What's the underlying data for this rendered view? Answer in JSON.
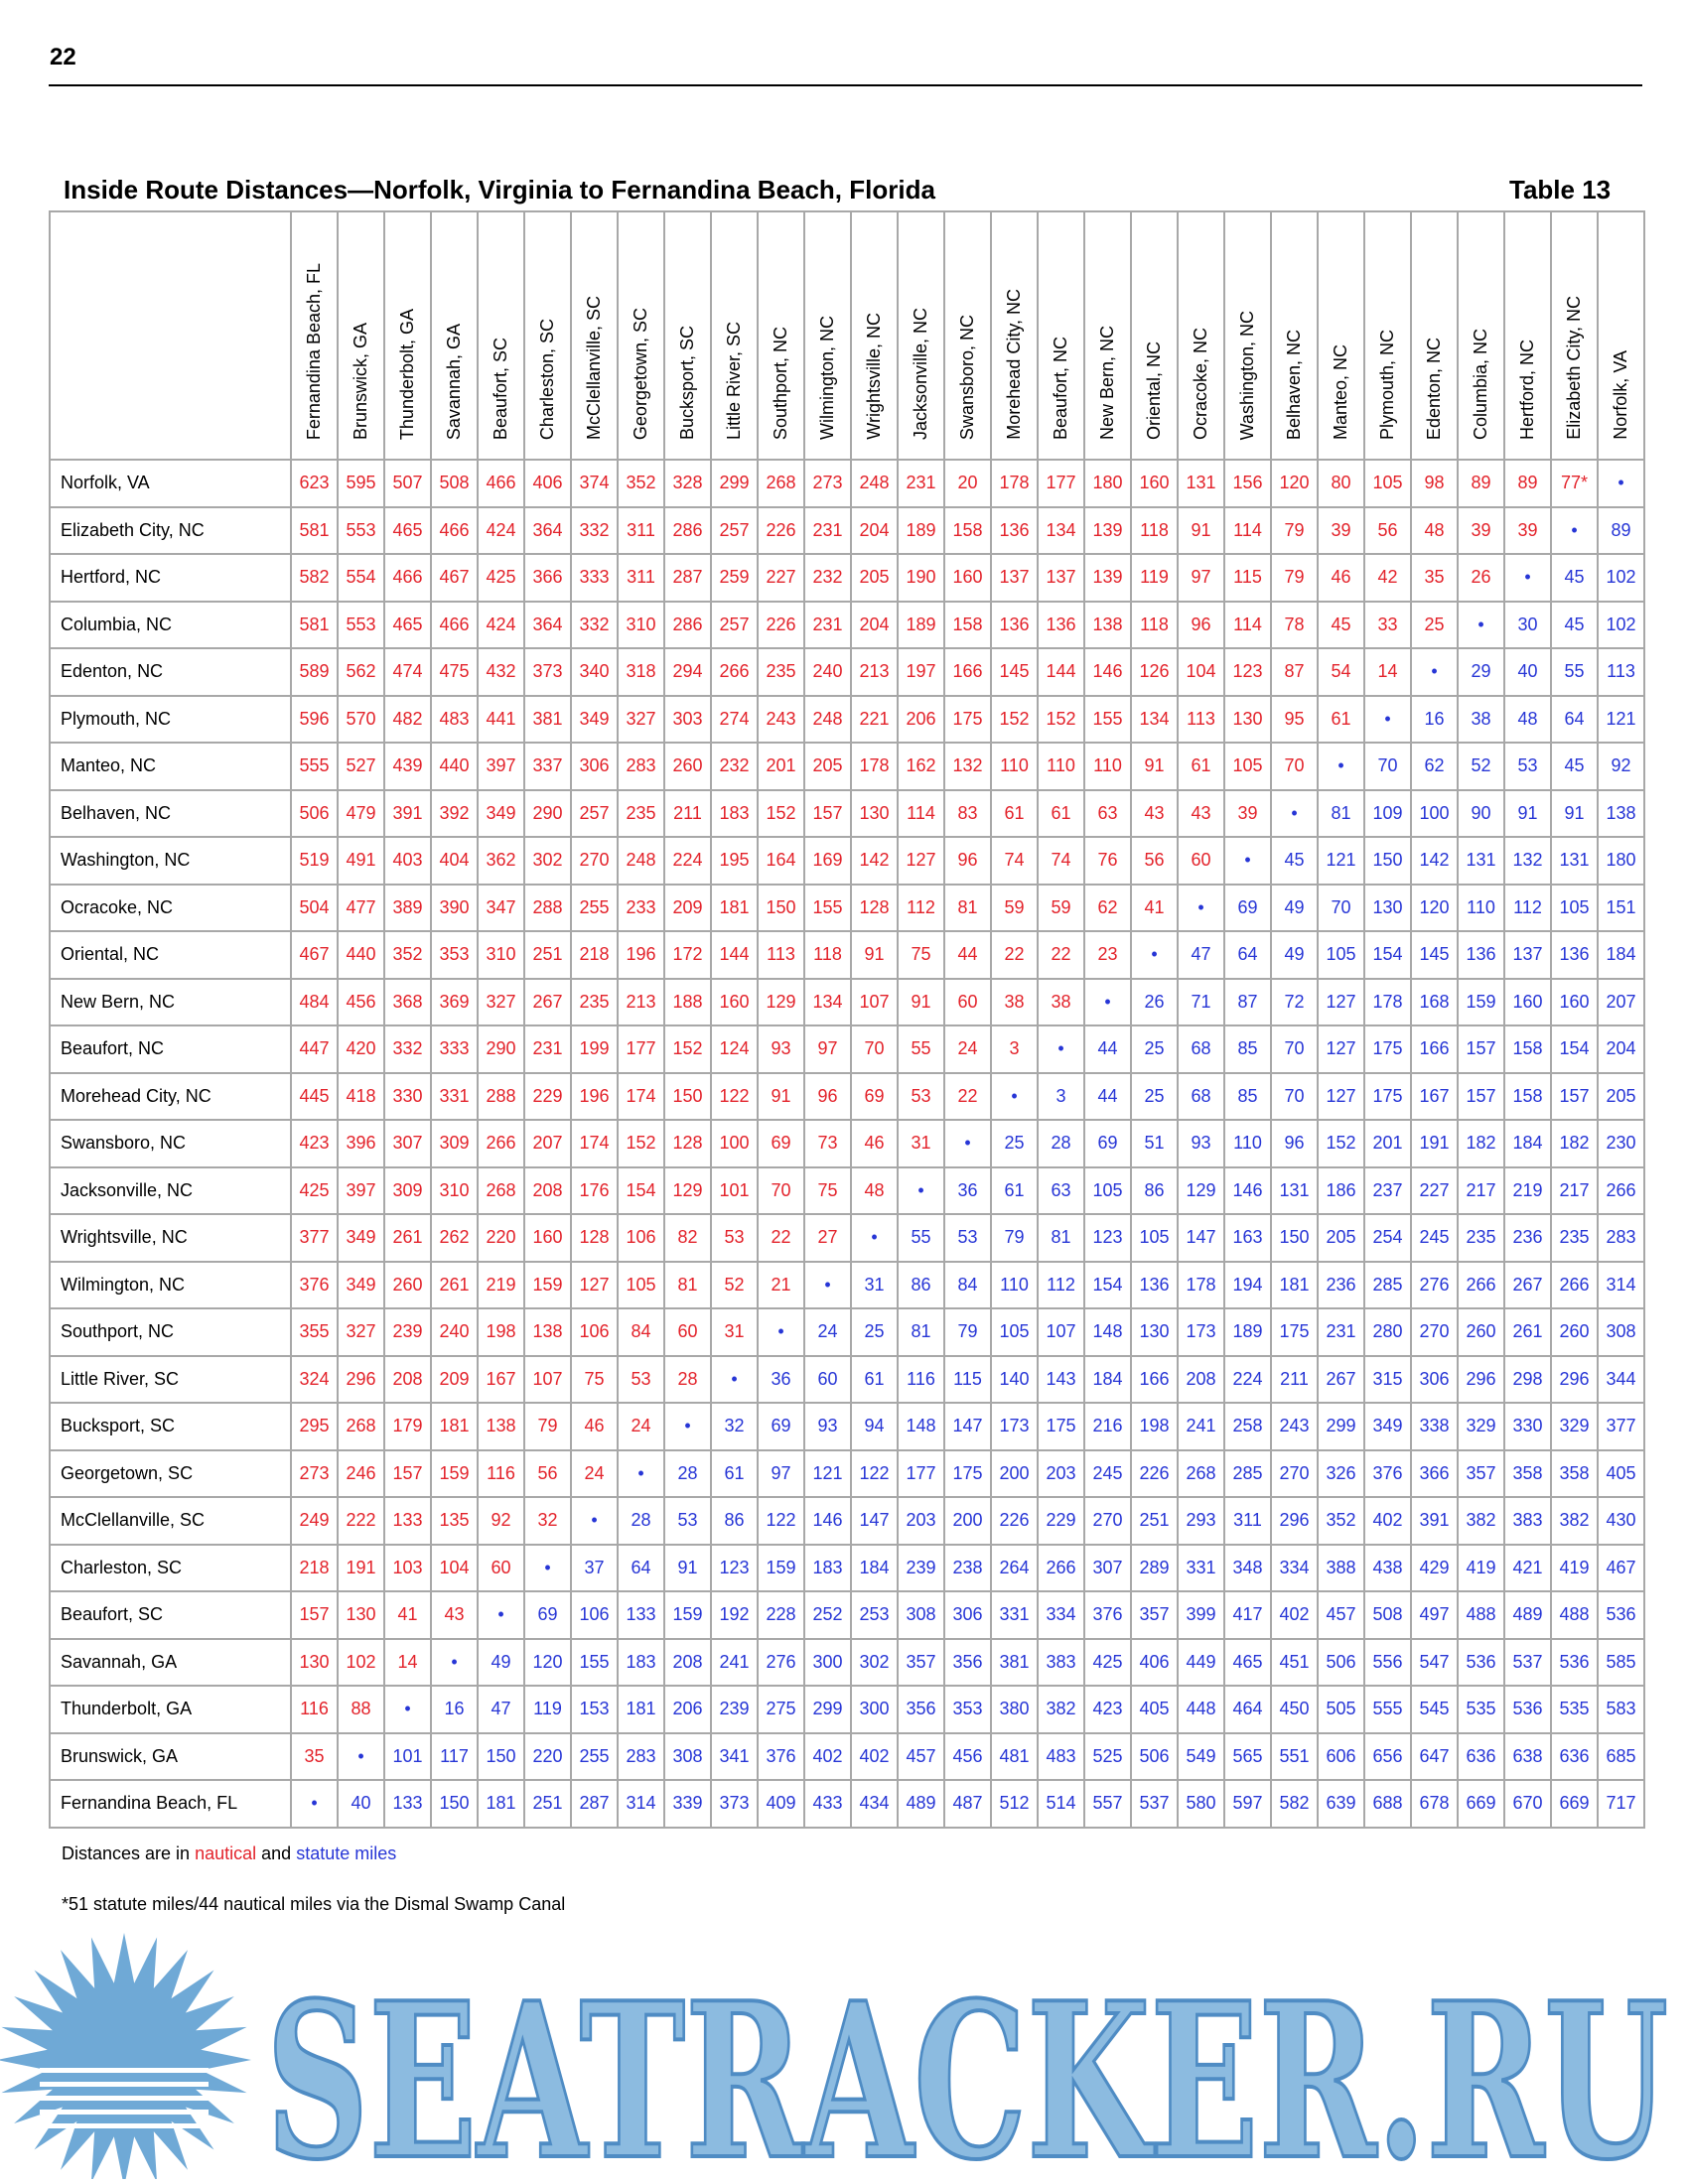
{
  "page_number": "22",
  "table": {
    "title": "Inside Route Distances—Norfolk, Virginia to Fernandina Beach, Florida",
    "label": "Table 13",
    "columns": [
      "Fernandina Beach, FL",
      "Brunswick, GA",
      "Thunderbolt, GA",
      "Savannah, GA",
      "Beaufort, SC",
      "Charleston, SC",
      "McClellanville, SC",
      "Georgetown, SC",
      "Bucksport, SC",
      "Little River, SC",
      "Southport, NC",
      "Wilmington, NC",
      "Wrightsville, NC",
      "Jacksonville, NC",
      "Swansboro, NC",
      "Morehead City, NC",
      "Beaufort, NC",
      "New Bern, NC",
      "Oriental, NC",
      "Ocracoke, NC",
      "Washington, NC",
      "Belhaven, NC",
      "Manteo, NC",
      "Plymouth, NC",
      "Edenton, NC",
      "Columbia, NC",
      "Hertford, NC",
      "Elizabeth City, NC",
      "Norfolk, VA"
    ],
    "rows": [
      {
        "name": "Norfolk, VA",
        "cells": [
          623,
          595,
          507,
          508,
          466,
          406,
          374,
          352,
          328,
          299,
          268,
          273,
          248,
          231,
          20,
          178,
          177,
          180,
          160,
          131,
          156,
          120,
          80,
          105,
          98,
          89,
          89,
          "77*",
          "•"
        ]
      },
      {
        "name": "Elizabeth City, NC",
        "cells": [
          581,
          553,
          465,
          466,
          424,
          364,
          332,
          311,
          286,
          257,
          226,
          231,
          204,
          189,
          158,
          136,
          134,
          139,
          118,
          91,
          114,
          79,
          39,
          56,
          48,
          39,
          39,
          "•",
          89
        ]
      },
      {
        "name": "Hertford, NC",
        "cells": [
          582,
          554,
          466,
          467,
          425,
          366,
          333,
          311,
          287,
          259,
          227,
          232,
          205,
          190,
          160,
          137,
          137,
          139,
          119,
          97,
          115,
          79,
          46,
          42,
          35,
          26,
          "•",
          45,
          102
        ]
      },
      {
        "name": "Columbia, NC",
        "cells": [
          581,
          553,
          465,
          466,
          424,
          364,
          332,
          310,
          286,
          257,
          226,
          231,
          204,
          189,
          158,
          136,
          136,
          138,
          118,
          96,
          114,
          78,
          45,
          33,
          25,
          "•",
          30,
          45,
          102
        ]
      },
      {
        "name": "Edenton, NC",
        "cells": [
          589,
          562,
          474,
          475,
          432,
          373,
          340,
          318,
          294,
          266,
          235,
          240,
          213,
          197,
          166,
          145,
          144,
          146,
          126,
          104,
          123,
          87,
          54,
          14,
          "•",
          29,
          40,
          55,
          113
        ]
      },
      {
        "name": "Plymouth, NC",
        "cells": [
          596,
          570,
          482,
          483,
          441,
          381,
          349,
          327,
          303,
          274,
          243,
          248,
          221,
          206,
          175,
          152,
          152,
          155,
          134,
          113,
          130,
          95,
          61,
          "•",
          16,
          38,
          48,
          64,
          121
        ]
      },
      {
        "name": "Manteo, NC",
        "cells": [
          555,
          527,
          439,
          440,
          397,
          337,
          306,
          283,
          260,
          232,
          201,
          205,
          178,
          162,
          132,
          110,
          110,
          110,
          91,
          61,
          105,
          70,
          "•",
          70,
          62,
          52,
          53,
          45,
          92
        ]
      },
      {
        "name": "Belhaven, NC",
        "cells": [
          506,
          479,
          391,
          392,
          349,
          290,
          257,
          235,
          211,
          183,
          152,
          157,
          130,
          114,
          83,
          61,
          61,
          63,
          43,
          43,
          39,
          "•",
          81,
          109,
          100,
          90,
          91,
          91,
          138
        ]
      },
      {
        "name": "Washington, NC",
        "cells": [
          519,
          491,
          403,
          404,
          362,
          302,
          270,
          248,
          224,
          195,
          164,
          169,
          142,
          127,
          96,
          74,
          74,
          76,
          56,
          60,
          "•",
          45,
          121,
          150,
          142,
          131,
          132,
          131,
          180
        ]
      },
      {
        "name": "Ocracoke, NC",
        "cells": [
          504,
          477,
          389,
          390,
          347,
          288,
          255,
          233,
          209,
          181,
          150,
          155,
          128,
          112,
          81,
          59,
          59,
          62,
          41,
          "•",
          69,
          49,
          70,
          130,
          120,
          110,
          112,
          105,
          151
        ]
      },
      {
        "name": "Oriental, NC",
        "cells": [
          467,
          440,
          352,
          353,
          310,
          251,
          218,
          196,
          172,
          144,
          113,
          118,
          91,
          75,
          44,
          22,
          22,
          23,
          "•",
          47,
          64,
          49,
          105,
          154,
          145,
          136,
          137,
          136,
          184
        ]
      },
      {
        "name": "New Bern, NC",
        "cells": [
          484,
          456,
          368,
          369,
          327,
          267,
          235,
          213,
          188,
          160,
          129,
          134,
          107,
          91,
          60,
          38,
          38,
          "•",
          26,
          71,
          87,
          72,
          127,
          178,
          168,
          159,
          160,
          160,
          207
        ]
      },
      {
        "name": "Beaufort, NC",
        "cells": [
          447,
          420,
          332,
          333,
          290,
          231,
          199,
          177,
          152,
          124,
          93,
          97,
          70,
          55,
          24,
          3,
          "•",
          44,
          25,
          68,
          85,
          70,
          127,
          175,
          166,
          157,
          158,
          154,
          204
        ]
      },
      {
        "name": "Morehead City, NC",
        "cells": [
          445,
          418,
          330,
          331,
          288,
          229,
          196,
          174,
          150,
          122,
          91,
          96,
          69,
          53,
          22,
          "•",
          3,
          44,
          25,
          68,
          85,
          70,
          127,
          175,
          167,
          157,
          158,
          157,
          205
        ]
      },
      {
        "name": "Swansboro, NC",
        "cells": [
          423,
          396,
          307,
          309,
          266,
          207,
          174,
          152,
          128,
          100,
          69,
          73,
          46,
          31,
          "•",
          25,
          28,
          69,
          51,
          93,
          110,
          96,
          152,
          201,
          191,
          182,
          184,
          182,
          230
        ]
      },
      {
        "name": "Jacksonville, NC",
        "cells": [
          425,
          397,
          309,
          310,
          268,
          208,
          176,
          154,
          129,
          101,
          70,
          75,
          48,
          "•",
          36,
          61,
          63,
          105,
          86,
          129,
          146,
          131,
          186,
          237,
          227,
          217,
          219,
          217,
          266
        ]
      },
      {
        "name": "Wrightsville, NC",
        "cells": [
          377,
          349,
          261,
          262,
          220,
          160,
          128,
          106,
          82,
          53,
          22,
          27,
          "•",
          55,
          53,
          79,
          81,
          123,
          105,
          147,
          163,
          150,
          205,
          254,
          245,
          235,
          236,
          235,
          283
        ]
      },
      {
        "name": "Wilmington, NC",
        "cells": [
          376,
          349,
          260,
          261,
          219,
          159,
          127,
          105,
          81,
          52,
          21,
          "•",
          31,
          86,
          84,
          110,
          112,
          154,
          136,
          178,
          194,
          181,
          236,
          285,
          276,
          266,
          267,
          266,
          314
        ]
      },
      {
        "name": "Southport, NC",
        "cells": [
          355,
          327,
          239,
          240,
          198,
          138,
          106,
          84,
          60,
          31,
          "•",
          24,
          25,
          81,
          79,
          105,
          107,
          148,
          130,
          173,
          189,
          175,
          231,
          280,
          270,
          260,
          261,
          260,
          308
        ]
      },
      {
        "name": "Little River, SC",
        "cells": [
          324,
          296,
          208,
          209,
          167,
          107,
          75,
          53,
          28,
          "•",
          36,
          60,
          61,
          116,
          115,
          140,
          143,
          184,
          166,
          208,
          224,
          211,
          267,
          315,
          306,
          296,
          298,
          296,
          344
        ]
      },
      {
        "name": "Bucksport, SC",
        "cells": [
          295,
          268,
          179,
          181,
          138,
          79,
          46,
          24,
          "•",
          32,
          69,
          93,
          94,
          148,
          147,
          173,
          175,
          216,
          198,
          241,
          258,
          243,
          299,
          349,
          338,
          329,
          330,
          329,
          377
        ]
      },
      {
        "name": "Georgetown, SC",
        "cells": [
          273,
          246,
          157,
          159,
          116,
          56,
          24,
          "•",
          28,
          61,
          97,
          121,
          122,
          177,
          175,
          200,
          203,
          245,
          226,
          268,
          285,
          270,
          326,
          376,
          366,
          357,
          358,
          358,
          405
        ]
      },
      {
        "name": "McClellanville, SC",
        "cells": [
          249,
          222,
          133,
          135,
          92,
          32,
          "•",
          28,
          53,
          86,
          122,
          146,
          147,
          203,
          200,
          226,
          229,
          270,
          251,
          293,
          311,
          296,
          352,
          402,
          391,
          382,
          383,
          382,
          430
        ]
      },
      {
        "name": "Charleston, SC",
        "cells": [
          218,
          191,
          103,
          104,
          60,
          "•",
          37,
          64,
          91,
          123,
          159,
          183,
          184,
          239,
          238,
          264,
          266,
          307,
          289,
          331,
          348,
          334,
          388,
          438,
          429,
          419,
          421,
          419,
          467
        ]
      },
      {
        "name": "Beaufort, SC",
        "cells": [
          157,
          130,
          41,
          43,
          "•",
          69,
          106,
          133,
          159,
          192,
          228,
          252,
          253,
          308,
          306,
          331,
          334,
          376,
          357,
          399,
          417,
          402,
          457,
          508,
          497,
          488,
          489,
          488,
          536
        ]
      },
      {
        "name": "Savannah, GA",
        "cells": [
          130,
          102,
          14,
          "•",
          49,
          120,
          155,
          183,
          208,
          241,
          276,
          300,
          302,
          357,
          356,
          381,
          383,
          425,
          406,
          449,
          465,
          451,
          506,
          556,
          547,
          536,
          537,
          536,
          585
        ]
      },
      {
        "name": "Thunderbolt, GA",
        "cells": [
          116,
          88,
          "•",
          16,
          47,
          119,
          153,
          181,
          206,
          239,
          275,
          299,
          300,
          356,
          353,
          380,
          382,
          423,
          405,
          448,
          464,
          450,
          505,
          555,
          545,
          535,
          536,
          535,
          583
        ]
      },
      {
        "name": "Brunswick, GA",
        "cells": [
          35,
          "•",
          101,
          117,
          150,
          220,
          255,
          283,
          308,
          341,
          376,
          402,
          402,
          457,
          456,
          481,
          483,
          525,
          506,
          549,
          565,
          551,
          606,
          656,
          647,
          636,
          638,
          636,
          685
        ]
      },
      {
        "name": "Fernandina Beach, FL",
        "cells": [
          "•",
          40,
          133,
          150,
          181,
          251,
          287,
          314,
          339,
          373,
          409,
          433,
          434,
          489,
          487,
          512,
          514,
          557,
          537,
          580,
          597,
          582,
          639,
          688,
          678,
          669,
          670,
          669,
          717
        ]
      }
    ]
  },
  "footer": {
    "legend_prefix": "Distances are in",
    "nautical": "nautical",
    "and": "and",
    "statute": "statute miles",
    "footnote": "*51 statute miles/44 nautical miles via the Dismal Swamp Canal"
  },
  "watermark": "SEATRACKER.RU"
}
